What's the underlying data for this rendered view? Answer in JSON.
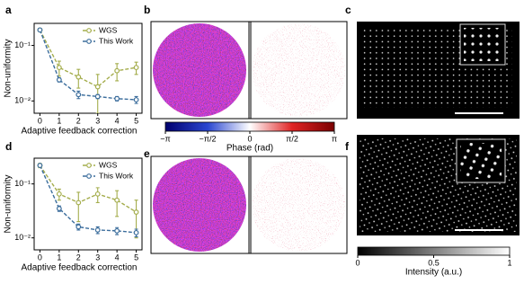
{
  "panel_labels": [
    "a",
    "b",
    "c",
    "d",
    "e",
    "f"
  ],
  "chart_data": [
    {
      "type": "line",
      "xlabel": "Adaptive feedback correction",
      "ylabel": "Non-uniformity",
      "x": [
        0,
        1,
        2,
        3,
        4,
        5
      ],
      "xlim": [
        -0.3,
        5.3
      ],
      "xticks": [
        0,
        1,
        2,
        3,
        4,
        5
      ],
      "log_y": true,
      "ylim": [
        0.006,
        0.25
      ],
      "yticks": [
        {
          "value": 0.01,
          "label": "10⁻²"
        },
        {
          "value": 0.1,
          "label": "10⁻¹"
        }
      ],
      "legend": "upper right",
      "series": [
        {
          "name": "WGS",
          "color": "#a4ad4c",
          "values": [
            0.19,
            0.04,
            0.027,
            0.018,
            0.035,
            0.04
          ],
          "errors": [
            0.01,
            0.012,
            0.01,
            0.012,
            0.012,
            0.01
          ]
        },
        {
          "name": "This Work",
          "color": "#3b6d9c",
          "values": [
            0.19,
            0.024,
            0.013,
            0.012,
            0.011,
            0.0105
          ],
          "errors": [
            0.01,
            0.002,
            0.002,
            0.001,
            0.001,
            0.0015
          ]
        }
      ]
    },
    {
      "type": "line",
      "xlabel": "Adaptive feedback correction",
      "ylabel": "Non-uniformity",
      "x": [
        0,
        1,
        2,
        3,
        4,
        5
      ],
      "xlim": [
        -0.3,
        5.3
      ],
      "xticks": [
        0,
        1,
        2,
        3,
        4,
        5
      ],
      "log_y": true,
      "ylim": [
        0.006,
        0.3
      ],
      "yticks": [
        {
          "value": 0.01,
          "label": "10⁻²"
        },
        {
          "value": 0.1,
          "label": "10⁻¹"
        }
      ],
      "legend": "upper right",
      "series": [
        {
          "name": "WGS",
          "color": "#a4ad4c",
          "values": [
            0.22,
            0.065,
            0.045,
            0.065,
            0.05,
            0.03
          ],
          "errors": [
            0.02,
            0.015,
            0.025,
            0.02,
            0.025,
            0.02
          ]
        },
        {
          "name": "This Work",
          "color": "#3b6d9c",
          "values": [
            0.22,
            0.035,
            0.016,
            0.014,
            0.0135,
            0.0125
          ],
          "errors": [
            0.01,
            0.004,
            0.002,
            0.002,
            0.002,
            0.002
          ]
        }
      ]
    }
  ],
  "colorbars": [
    {
      "label": "Phase (rad)",
      "xlim": [
        -3.14159,
        3.14159
      ],
      "xticks": [
        {
          "value": -3.14159,
          "label": "−π"
        },
        {
          "value": -1.5708,
          "label": "−π/2"
        },
        0,
        {
          "value": 1.5708,
          "label": "π/2"
        },
        {
          "value": 3.14159,
          "label": "π"
        }
      ],
      "colors": [
        "#00006e",
        "#2a46d0",
        "#ffffff",
        "#e02424",
        "#7a0000"
      ]
    },
    {
      "label": "Intensity (a.u.)",
      "xlim": [
        0,
        1
      ],
      "xticks": [
        0,
        0.5,
        1
      ],
      "colors": [
        "#000000",
        "#ffffff"
      ]
    }
  ]
}
